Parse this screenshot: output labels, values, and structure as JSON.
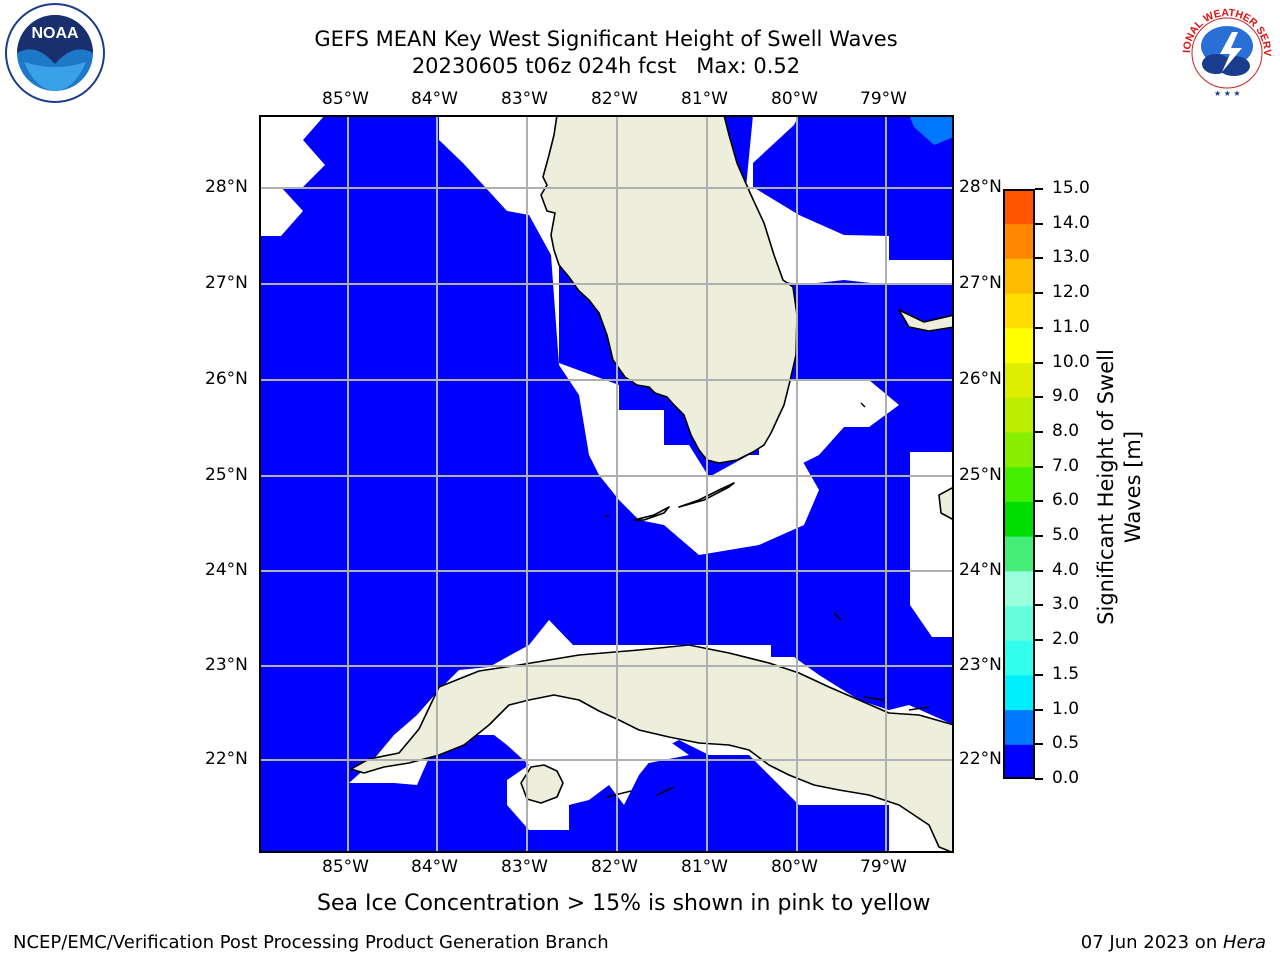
{
  "title": {
    "line1": "GEFS MEAN Key West Significant Height of Swell Waves",
    "line2": "20230605 t06z 024h fcst   Max: 0.52"
  },
  "map": {
    "lon_ticks": [
      "85°W",
      "84°W",
      "83°W",
      "82°W",
      "81°W",
      "80°W",
      "79°W"
    ],
    "lat_ticks": [
      "28°N",
      "27°N",
      "26°N",
      "25°N",
      "24°N",
      "23°N",
      "22°N"
    ],
    "colors": {
      "ocean": "#0000ff",
      "land": "#eeeedd",
      "grid": "#b0b0b0",
      "nodata": "#ffffff"
    }
  },
  "colorbar": {
    "label": "Significant Height of Swell Waves [m]",
    "label_line1": "Significant Height of Swell",
    "label_line2": "Waves [m]",
    "ticks": [
      "0.0",
      "0.5",
      "1.0",
      "1.5",
      "2.0",
      "3.0",
      "4.0",
      "5.0",
      "6.0",
      "7.0",
      "8.0",
      "9.0",
      "10.0",
      "11.0",
      "12.0",
      "13.0",
      "14.0",
      "15.0"
    ],
    "colors": [
      "#0000ff",
      "#0077ff",
      "#00eeff",
      "#33ffee",
      "#66ffdd",
      "#99ffdd",
      "#44ee77",
      "#00dd00",
      "#44ee00",
      "#88ee00",
      "#bbee00",
      "#ddee00",
      "#ffff00",
      "#ffdd00",
      "#ffbb00",
      "#ff8800",
      "#ff5500",
      "#ff2200",
      "#ff0000"
    ]
  },
  "caption": "Sea Ice Concentration > 15% is shown in pink to yellow",
  "footer": {
    "left": "NCEP/EMC/Verification Post Processing Product Generation Branch",
    "right_date": "07 Jun 2023 on ",
    "right_host": "Hera"
  },
  "logos": {
    "noaa": "NOAA",
    "nws": "NATIONAL WEATHER SERVICE"
  }
}
